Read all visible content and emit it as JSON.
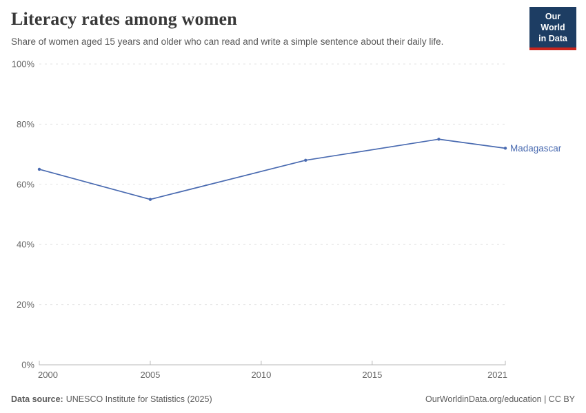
{
  "header": {
    "title": "Literacy rates among women",
    "subtitle": "Share of women aged 15 years and older who can read and write a simple sentence about their daily life.",
    "logo": {
      "line1": "Our World",
      "line2": "in Data"
    }
  },
  "chart_data": {
    "type": "line",
    "title": "Literacy rates among women",
    "xlabel": "",
    "ylabel": "",
    "xlim": [
      2000,
      2021
    ],
    "ylim": [
      0,
      100
    ],
    "grid": "horizontal-dashed",
    "legend_position": "end-of-line-label",
    "x_tick_years": [
      2000,
      2005,
      2010,
      2015,
      2021
    ],
    "y_tick_values": [
      0,
      20,
      40,
      60,
      80,
      100
    ],
    "y_tick_labels": [
      "0%",
      "20%",
      "40%",
      "60%",
      "80%",
      "100%"
    ],
    "series": [
      {
        "name": "Madagascar",
        "x": [
          2000,
          2005,
          2012,
          2018,
          2021
        ],
        "values": [
          65,
          55,
          68,
          75,
          72
        ]
      }
    ]
  },
  "colors": {
    "line": "#4a6bb1",
    "grid": "#e3e3e3",
    "axis": "#b9b9b9",
    "tick_text": "#666666",
    "logo_bg": "#1d3d63",
    "logo_red": "#c9251d"
  },
  "footer": {
    "source_label": "Data source:",
    "source_text": "UNESCO Institute for Statistics (2025)",
    "right_text": "OurWorldinData.org/education | CC BY"
  }
}
